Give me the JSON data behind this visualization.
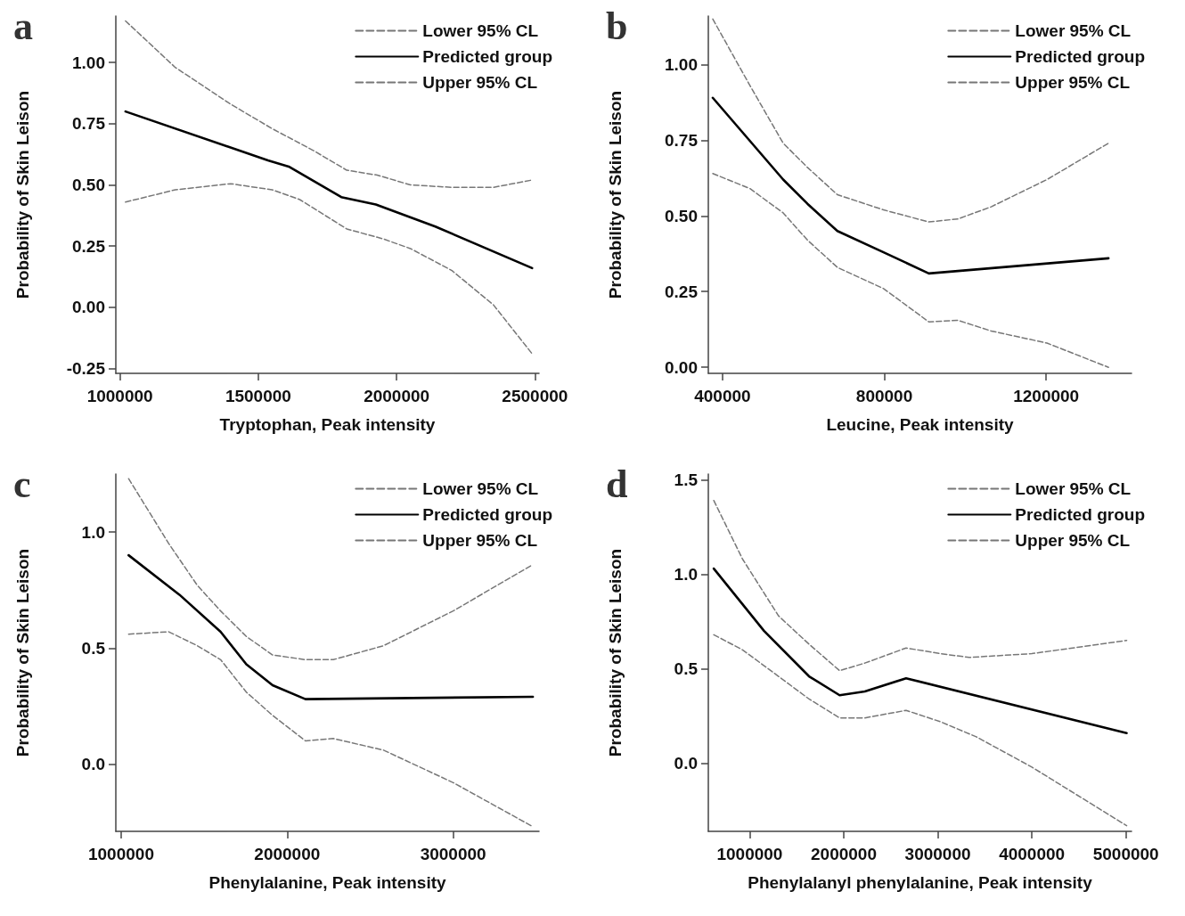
{
  "chart_data": [
    {
      "type": "line",
      "title": "a",
      "xlabel": "Tryptophan, Peak intensity",
      "ylabel": "Probability of Skin Leison",
      "legend": "top right",
      "grid": false,
      "xlim": [
        985000,
        2515000
      ],
      "xticks": [
        1000000,
        1500000,
        2000000,
        2500000
      ],
      "ylim": [
        -0.27,
        1.19
      ],
      "yticks": [
        {
          "value": -0.25,
          "label": "-0.25"
        },
        {
          "value": 0,
          "label": "0.00"
        },
        {
          "value": 0.25,
          "label": "0.25"
        },
        {
          "value": 0.5,
          "label": "0.50"
        },
        {
          "value": 0.75,
          "label": "0.75"
        },
        {
          "value": 1,
          "label": "1.00"
        }
      ],
      "series": [
        {
          "name": "Lower 95% CL",
          "color": "#777777",
          "line_style": "dashed",
          "x": [
            1020000,
            1200000,
            1400000,
            1550000,
            1650000,
            1820000,
            1950000,
            2050000,
            2200000,
            2350000,
            2490000
          ],
          "values": [
            0.43,
            0.48,
            0.505,
            0.48,
            0.44,
            0.32,
            0.28,
            0.24,
            0.15,
            0.01,
            -0.19
          ]
        },
        {
          "name": "Predicted group",
          "color": "#000000",
          "line_style": "solid",
          "x": [
            1020000,
            1535000,
            1610000,
            1800000,
            1925000,
            2140000,
            2490000
          ],
          "values": [
            0.8,
            0.6,
            0.575,
            0.45,
            0.42,
            0.33,
            0.16
          ]
        },
        {
          "name": "Upper 95% CL",
          "color": "#777777",
          "line_style": "dashed",
          "x": [
            1020000,
            1200000,
            1400000,
            1550000,
            1700000,
            1820000,
            1930000,
            2050000,
            2200000,
            2350000,
            2490000
          ],
          "values": [
            1.17,
            0.98,
            0.83,
            0.73,
            0.64,
            0.56,
            0.54,
            0.5,
            0.49,
            0.49,
            0.52
          ]
        }
      ]
    },
    {
      "type": "line",
      "title": "b",
      "xlabel": "Leucine, Peak intensity",
      "ylabel": "Probability of Skin Leison",
      "legend": "top right",
      "grid": false,
      "xlim": [
        365000,
        1411000
      ],
      "xticks": [
        400000,
        800000,
        1200000
      ],
      "ylim": [
        -0.02,
        1.16
      ],
      "yticks": [
        {
          "value": 0,
          "label": "0.00"
        },
        {
          "value": 0.25,
          "label": "0.25"
        },
        {
          "value": 0.5,
          "label": "0.50"
        },
        {
          "value": 0.75,
          "label": "0.75"
        },
        {
          "value": 1,
          "label": "1.00"
        }
      ],
      "series": [
        {
          "name": "Lower 95% CL",
          "color": "#777777",
          "line_style": "dashed",
          "x": [
            376000,
            468000,
            550000,
            610000,
            684000,
            798000,
            910000,
            982000,
            1064000,
            1202000,
            1354000
          ],
          "values": [
            0.64,
            0.59,
            0.51,
            0.42,
            0.33,
            0.26,
            0.15,
            0.155,
            0.12,
            0.08,
            0.0
          ]
        },
        {
          "name": "Predicted group",
          "color": "#000000",
          "line_style": "solid",
          "x": [
            376000,
            550000,
            610000,
            684000,
            798000,
            910000,
            1354000
          ],
          "values": [
            0.89,
            0.62,
            0.54,
            0.45,
            0.38,
            0.31,
            0.36
          ]
        },
        {
          "name": "Upper 95% CL",
          "color": "#777777",
          "line_style": "dashed",
          "x": [
            376000,
            468000,
            550000,
            610000,
            684000,
            798000,
            910000,
            982000,
            1064000,
            1202000,
            1354000
          ],
          "values": [
            1.15,
            0.93,
            0.74,
            0.66,
            0.57,
            0.52,
            0.48,
            0.49,
            0.53,
            0.62,
            0.74
          ]
        }
      ]
    },
    {
      "type": "line",
      "title": "c",
      "xlabel": "Phenylalanine, Peak intensity",
      "ylabel": "Probability of Skin Leison",
      "legend": "top right",
      "grid": false,
      "xlim": [
        968000,
        3517000
      ],
      "xticks": [
        1000000,
        2000000,
        3000000
      ],
      "ylim": [
        -0.29,
        1.25
      ],
      "yticks": [
        {
          "value": 0,
          "label": "0.0"
        },
        {
          "value": 0.5,
          "label": "0.5"
        },
        {
          "value": 1,
          "label": "1.0"
        }
      ],
      "series": [
        {
          "name": "Lower 95% CL",
          "color": "#777777",
          "line_style": "dashed",
          "x": [
            1045000,
            1287000,
            1459000,
            1599000,
            1754000,
            1912000,
            2110000,
            2278000,
            2580000,
            3000000,
            3480000
          ],
          "values": [
            0.56,
            0.57,
            0.51,
            0.45,
            0.31,
            0.21,
            0.1,
            0.11,
            0.06,
            -0.08,
            -0.27
          ]
        },
        {
          "name": "Predicted group",
          "color": "#000000",
          "line_style": "solid",
          "x": [
            1045000,
            1351000,
            1599000,
            1754000,
            1912000,
            2110000,
            3480000
          ],
          "values": [
            0.9,
            0.73,
            0.57,
            0.43,
            0.34,
            0.28,
            0.29
          ]
        },
        {
          "name": "Upper 95% CL",
          "color": "#777777",
          "line_style": "dashed",
          "x": [
            1045000,
            1287000,
            1459000,
            1599000,
            1754000,
            1912000,
            2110000,
            2278000,
            2580000,
            3000000,
            3480000
          ],
          "values": [
            1.23,
            0.95,
            0.77,
            0.66,
            0.55,
            0.47,
            0.45,
            0.45,
            0.51,
            0.66,
            0.86
          ]
        }
      ]
    },
    {
      "type": "line",
      "title": "d",
      "xlabel": "Phenylalanyl phenylalanine, Peak intensity",
      "ylabel": "Probability of Skin Leison",
      "legend": "top right",
      "grid": false,
      "xlim": [
        560000,
        5060000
      ],
      "xticks": [
        1000000,
        2000000,
        3000000,
        4000000,
        5000000
      ],
      "ylim": [
        -0.36,
        1.53
      ],
      "yticks": [
        {
          "value": 0,
          "label": "0.0"
        },
        {
          "value": 0.5,
          "label": "0.5"
        },
        {
          "value": 1,
          "label": "1.0"
        },
        {
          "value": 1.5,
          "label": "1.5"
        }
      ],
      "series": [
        {
          "name": "Lower 95% CL",
          "color": "#777777",
          "line_style": "dashed",
          "x": [
            618000,
            924000,
            1306000,
            1631000,
            1956000,
            2224000,
            2663000,
            3027000,
            3409000,
            4000000,
            5008000
          ],
          "values": [
            0.68,
            0.6,
            0.46,
            0.34,
            0.24,
            0.24,
            0.28,
            0.22,
            0.14,
            -0.02,
            -0.33
          ]
        },
        {
          "name": "Predicted group",
          "color": "#000000",
          "line_style": "solid",
          "x": [
            618000,
            1153000,
            1631000,
            1956000,
            2224000,
            2663000,
            5008000
          ],
          "values": [
            1.03,
            0.7,
            0.46,
            0.36,
            0.38,
            0.45,
            0.16
          ]
        },
        {
          "name": "Upper 95% CL",
          "color": "#777777",
          "line_style": "dashed",
          "x": [
            618000,
            924000,
            1306000,
            1631000,
            1956000,
            2224000,
            2663000,
            3027000,
            3333000,
            4000000,
            5008000
          ],
          "values": [
            1.39,
            1.08,
            0.78,
            0.63,
            0.49,
            0.53,
            0.61,
            0.58,
            0.56,
            0.58,
            0.65
          ]
        }
      ]
    }
  ]
}
